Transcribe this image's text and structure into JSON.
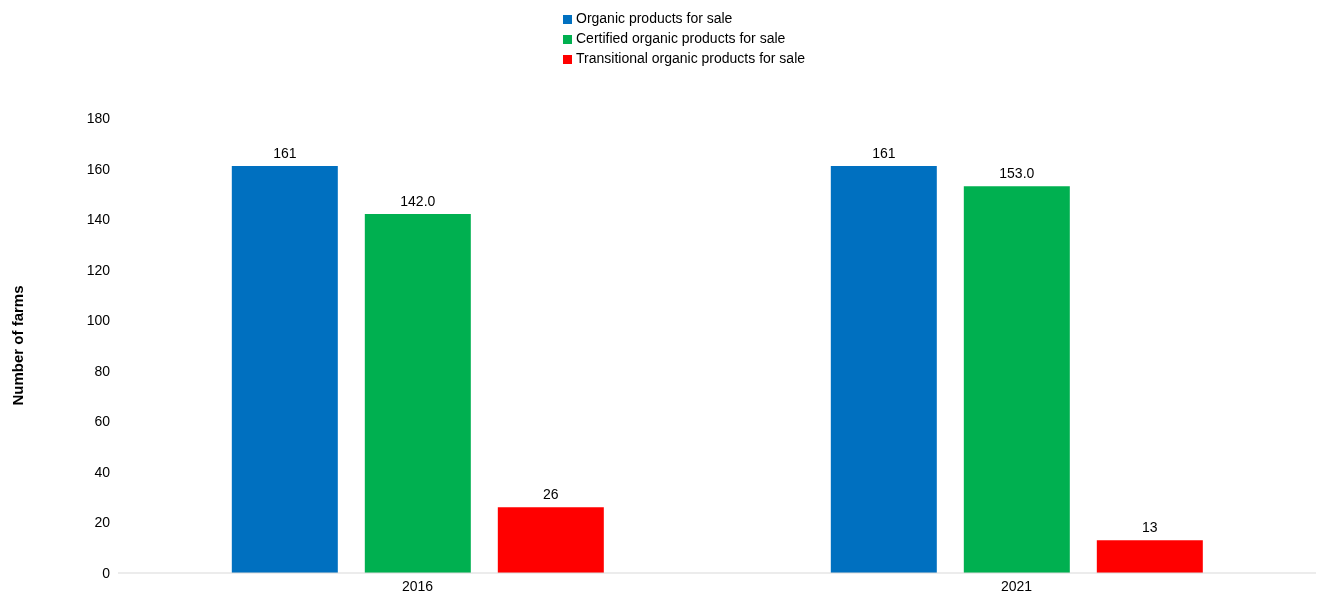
{
  "chart_data": {
    "type": "bar",
    "ylabel": "Number of farms",
    "categories": [
      "2016",
      "2021"
    ],
    "series": [
      {
        "name": "Organic products for sale",
        "color": "#0070c0",
        "values": [
          161,
          161
        ],
        "value_labels": [
          "161",
          "161"
        ]
      },
      {
        "name": "Certified organic products for sale",
        "color": "#00b050",
        "values": [
          142,
          153
        ],
        "value_labels": [
          "142.0",
          "153.0"
        ]
      },
      {
        "name": "Transitional organic products for sale",
        "color": "#ff0000",
        "values": [
          26,
          13
        ],
        "value_labels": [
          "26",
          "13"
        ]
      }
    ],
    "ylim": [
      0,
      180
    ],
    "yticks": [
      0,
      20,
      40,
      60,
      80,
      100,
      120,
      140,
      160,
      180
    ],
    "grid": false,
    "legend": "top"
  }
}
